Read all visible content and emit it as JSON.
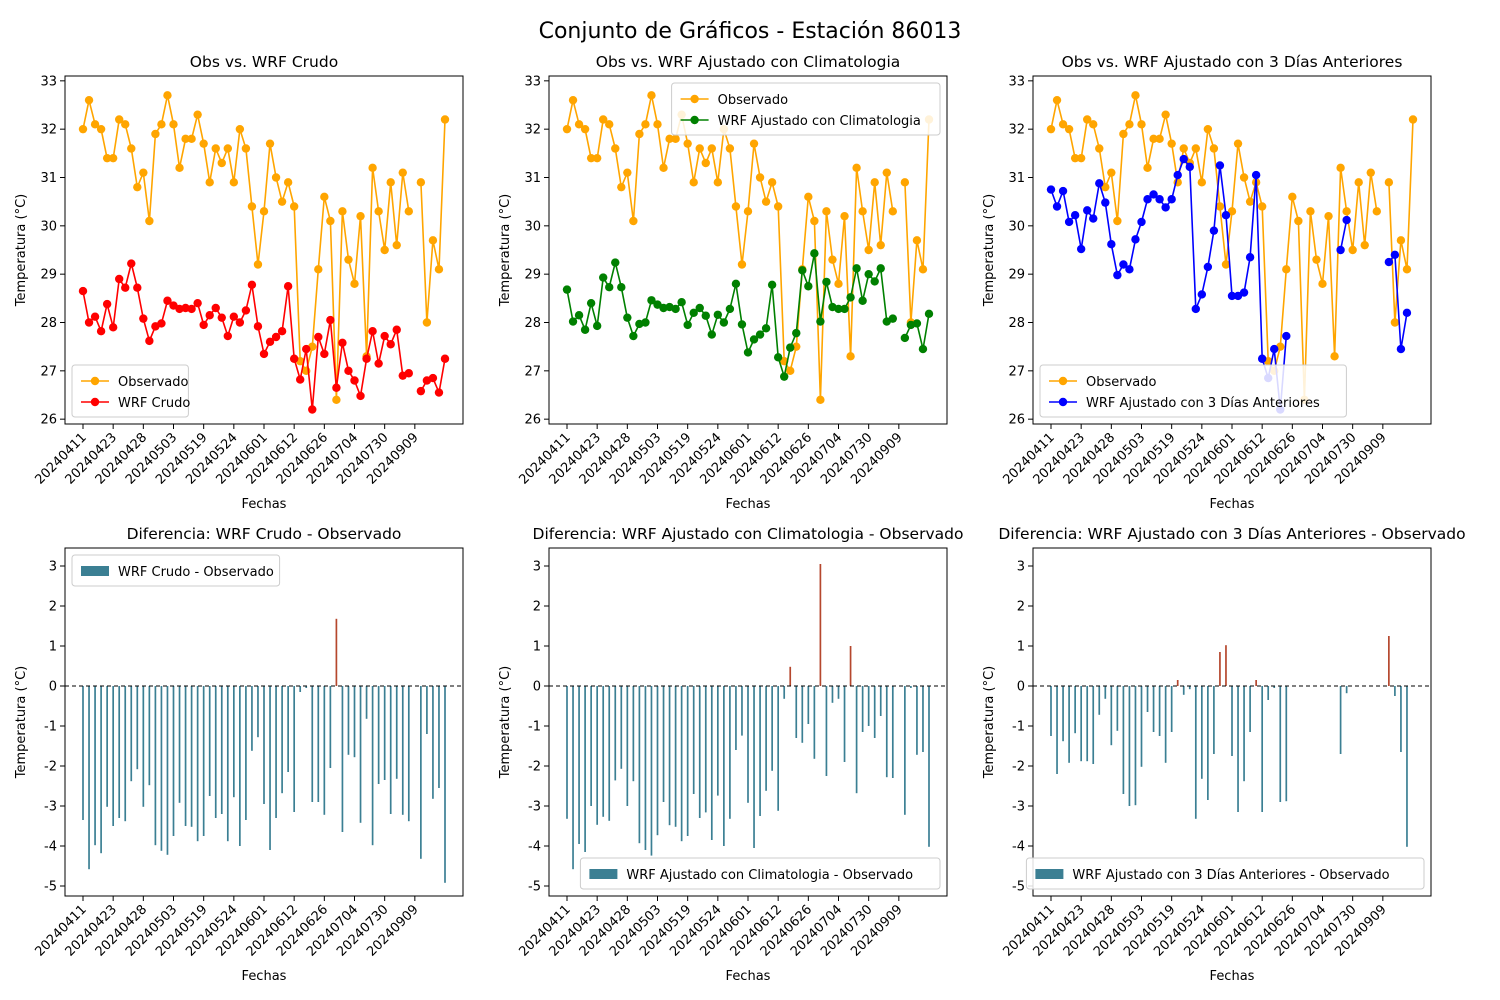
{
  "suptitle": "Conjunto de Gráficos - Estación 86013",
  "colors": {
    "observed": "#ffa500",
    "raw": "#ff0000",
    "clim": "#008000",
    "prev3": "#0000ff",
    "bar_neg": "#3b7f93",
    "bar_pos": "#b5472d"
  },
  "tick_labels": [
    "20240411",
    "20240423",
    "20240428",
    "20240503",
    "20240519",
    "20240524",
    "20240601",
    "20240612",
    "20240626",
    "20240704",
    "20240730",
    "20240909"
  ],
  "xlabel": "Fechas",
  "ylabel": "Temperatura (°C)",
  "chart_data": [
    {
      "id": "p1",
      "type": "line",
      "title": "Obs vs. WRF Crudo",
      "ylim": [
        25.9,
        33.1
      ],
      "yticks": [
        26,
        27,
        28,
        29,
        30,
        31,
        32,
        33
      ],
      "legend_position": "lower-left",
      "series": [
        {
          "name": "Observado",
          "color_key": "observed",
          "values": [
            32.0,
            32.6,
            32.1,
            32.0,
            31.4,
            31.4,
            32.2,
            32.1,
            31.6,
            30.8,
            31.1,
            30.1,
            31.9,
            32.1,
            32.7,
            32.1,
            31.2,
            31.8,
            31.8,
            32.3,
            31.7,
            30.9,
            31.6,
            31.3,
            31.6,
            30.9,
            32.0,
            31.6,
            30.4,
            29.2,
            30.3,
            31.7,
            31.0,
            30.5,
            30.9,
            30.4,
            27.2,
            27.0,
            27.5,
            29.1,
            30.6,
            30.1,
            26.4,
            30.3,
            29.3,
            28.8,
            30.2,
            27.3,
            31.2,
            30.3,
            29.5,
            30.9,
            29.6,
            31.1,
            30.3,
            null,
            30.9,
            28.0,
            29.7,
            29.1,
            32.2
          ]
        },
        {
          "name": "WRF Crudo",
          "color_key": "raw",
          "values": [
            28.65,
            28.0,
            28.12,
            27.82,
            28.38,
            27.9,
            28.9,
            28.72,
            29.22,
            28.72,
            28.08,
            27.62,
            27.92,
            27.98,
            28.45,
            28.35,
            28.28,
            28.3,
            28.28,
            28.4,
            27.95,
            28.15,
            28.3,
            28.1,
            27.72,
            28.12,
            28.0,
            28.25,
            28.78,
            27.92,
            27.35,
            27.6,
            27.7,
            27.82,
            28.75,
            27.25,
            26.82,
            27.45,
            26.2,
            27.7,
            27.35,
            28.05,
            26.65,
            27.58,
            27.0,
            26.8,
            26.48,
            27.25,
            27.82,
            27.15,
            27.72,
            27.55,
            27.85,
            26.9,
            26.95,
            null,
            26.58,
            26.8,
            26.85,
            26.55,
            27.25
          ]
        }
      ]
    },
    {
      "id": "p2",
      "type": "line",
      "title": "Obs vs. WRF Ajustado con Climatologia",
      "ylim": [
        25.9,
        33.1
      ],
      "yticks": [
        26,
        27,
        28,
        29,
        30,
        31,
        32,
        33
      ],
      "legend_position": "top-right",
      "series": [
        {
          "name": "Observado",
          "color_key": "observed",
          "values": [
            32.0,
            32.6,
            32.1,
            32.0,
            31.4,
            31.4,
            32.2,
            32.1,
            31.6,
            30.8,
            31.1,
            30.1,
            31.9,
            32.1,
            32.7,
            32.1,
            31.2,
            31.8,
            31.8,
            32.3,
            31.7,
            30.9,
            31.6,
            31.3,
            31.6,
            30.9,
            32.0,
            31.6,
            30.4,
            29.2,
            30.3,
            31.7,
            31.0,
            30.5,
            30.9,
            30.4,
            27.2,
            27.0,
            27.5,
            29.1,
            30.6,
            30.1,
            26.4,
            30.3,
            29.3,
            28.8,
            30.2,
            27.3,
            31.2,
            30.3,
            29.5,
            30.9,
            29.6,
            31.1,
            30.3,
            null,
            30.9,
            28.0,
            29.7,
            29.1,
            32.2
          ]
        },
        {
          "name": "WRF Ajustado con Climatologia",
          "color_key": "clim",
          "values": [
            28.68,
            28.02,
            28.15,
            27.85,
            28.4,
            27.93,
            28.93,
            28.73,
            29.24,
            28.73,
            28.1,
            27.72,
            27.97,
            28.0,
            28.46,
            28.37,
            28.3,
            28.32,
            28.28,
            28.42,
            27.95,
            28.2,
            28.3,
            28.14,
            27.75,
            28.16,
            28.0,
            28.28,
            28.8,
            27.96,
            27.38,
            27.65,
            27.75,
            27.88,
            28.78,
            27.28,
            26.88,
            27.48,
            27.78,
            29.08,
            28.75,
            29.43,
            28.02,
            28.84,
            28.32,
            28.28,
            28.28,
            28.52,
            29.12,
            28.45,
            29.0,
            28.85,
            29.12,
            28.02,
            28.08,
            null,
            27.68,
            27.95,
            27.98,
            27.45,
            28.18
          ]
        }
      ]
    },
    {
      "id": "p3",
      "type": "line",
      "title": "Obs vs. WRF Ajustado con 3 Días Anteriores",
      "ylim": [
        25.9,
        33.1
      ],
      "yticks": [
        26,
        27,
        28,
        29,
        30,
        31,
        32,
        33
      ],
      "legend_position": "lower-left",
      "series": [
        {
          "name": "Observado",
          "color_key": "observed",
          "values": [
            32.0,
            32.6,
            32.1,
            32.0,
            31.4,
            31.4,
            32.2,
            32.1,
            31.6,
            30.8,
            31.1,
            30.1,
            31.9,
            32.1,
            32.7,
            32.1,
            31.2,
            31.8,
            31.8,
            32.3,
            31.7,
            30.9,
            31.6,
            31.3,
            31.6,
            30.9,
            32.0,
            31.6,
            30.4,
            29.2,
            30.3,
            31.7,
            31.0,
            30.5,
            30.9,
            30.4,
            27.2,
            27.0,
            27.5,
            29.1,
            30.6,
            30.1,
            26.4,
            30.3,
            29.3,
            28.8,
            30.2,
            27.3,
            31.2,
            30.3,
            29.5,
            30.9,
            29.6,
            31.1,
            30.3,
            null,
            30.9,
            28.0,
            29.7,
            29.1,
            32.2
          ]
        },
        {
          "name": "WRF Ajustado con 3 Días Anteriores",
          "color_key": "prev3",
          "values": [
            30.75,
            30.4,
            30.72,
            30.08,
            30.22,
            29.52,
            30.32,
            30.15,
            30.88,
            30.48,
            29.62,
            28.98,
            29.2,
            29.1,
            29.72,
            30.08,
            30.55,
            30.65,
            30.55,
            30.38,
            30.55,
            31.05,
            31.38,
            31.22,
            28.28,
            28.58,
            29.15,
            29.9,
            31.25,
            30.22,
            28.55,
            28.55,
            28.62,
            29.35,
            31.05,
            27.25,
            26.85,
            27.45,
            26.2,
            27.72,
            null,
            null,
            null,
            null,
            null,
            null,
            null,
            null,
            29.5,
            30.12,
            null,
            null,
            null,
            null,
            null,
            null,
            29.25,
            29.4,
            27.45,
            28.2,
            null
          ]
        }
      ]
    },
    {
      "id": "p4",
      "type": "bar",
      "title": "Diferencia: WRF Crudo - Observado",
      "ylim": [
        -5.25,
        3.45
      ],
      "yticks": [
        -5,
        -4,
        -3,
        -2,
        -1,
        0,
        1,
        2,
        3
      ],
      "legend_position": "top-left",
      "series": [
        {
          "name": "WRF Crudo - Observado",
          "values": [
            -3.35,
            -4.58,
            -3.98,
            -4.18,
            -3.02,
            -3.5,
            -3.3,
            -3.38,
            -2.38,
            -2.08,
            -3.02,
            -2.48,
            -3.98,
            -4.12,
            -4.22,
            -3.75,
            -2.92,
            -3.5,
            -3.52,
            -3.88,
            -3.75,
            -2.75,
            -3.3,
            -3.2,
            -3.88,
            -2.78,
            -4.0,
            -3.35,
            -1.62,
            -1.28,
            -2.95,
            -4.1,
            -3.3,
            -2.68,
            -2.15,
            -3.15,
            -0.15,
            -0.05,
            -2.9,
            -2.9,
            -3.22,
            -2.05,
            1.68,
            -3.65,
            -1.72,
            -1.78,
            -3.42,
            -0.82,
            -3.98,
            -2.45,
            -2.35,
            -3.2,
            -2.32,
            -3.22,
            -3.38,
            null,
            -4.32,
            -1.2,
            -2.82,
            -2.55,
            -4.92
          ]
        }
      ]
    },
    {
      "id": "p5",
      "type": "bar",
      "title": "Diferencia: WRF Ajustado con Climatologia - Observado",
      "ylim": [
        -5.25,
        3.45
      ],
      "yticks": [
        -5,
        -4,
        -3,
        -2,
        -1,
        0,
        1,
        2,
        3
      ],
      "legend_position": "bottom-right",
      "series": [
        {
          "name": "WRF Ajustado con Climatologia - Observado",
          "values": [
            -3.32,
            -4.58,
            -3.95,
            -4.15,
            -3.0,
            -3.47,
            -3.27,
            -3.37,
            -2.36,
            -2.07,
            -3.0,
            -2.38,
            -3.93,
            -4.1,
            -4.24,
            -3.73,
            -2.9,
            -3.48,
            -3.52,
            -3.88,
            -3.75,
            -2.7,
            -3.3,
            -3.16,
            -3.85,
            -2.74,
            -4.0,
            -3.32,
            -1.6,
            -1.24,
            -2.92,
            -4.05,
            -3.25,
            -2.62,
            -2.12,
            -3.12,
            -0.32,
            0.48,
            -1.3,
            -1.42,
            -0.95,
            -1.82,
            3.05,
            -2.25,
            -0.42,
            -0.32,
            -1.9,
            1.0,
            -2.68,
            -1.15,
            -1.0,
            -1.3,
            -0.75,
            -2.28,
            -2.3,
            null,
            -3.22,
            -0.05,
            -1.72,
            -1.65,
            -4.02
          ]
        }
      ]
    },
    {
      "id": "p6",
      "type": "bar",
      "title": "Diferencia: WRF Ajustado con 3 Días Anteriores - Observado",
      "ylim": [
        -5.25,
        3.45
      ],
      "yticks": [
        -5,
        -4,
        -3,
        -2,
        -1,
        0,
        1,
        2,
        3
      ],
      "legend_position": "bottom-right",
      "series": [
        {
          "name": "WRF Ajustado con 3 Días Anteriores - Observado",
          "values": [
            -1.25,
            -2.2,
            -1.38,
            -1.92,
            -1.18,
            -1.88,
            -1.88,
            -1.95,
            -0.72,
            -0.32,
            -1.48,
            -1.12,
            -2.7,
            -3.0,
            -2.98,
            -2.02,
            -0.65,
            -1.15,
            -1.25,
            -1.92,
            -1.15,
            0.15,
            -0.22,
            -0.08,
            -3.32,
            -2.32,
            -2.85,
            -1.7,
            0.85,
            1.02,
            -1.75,
            -3.15,
            -2.38,
            -1.15,
            0.15,
            -3.15,
            -0.35,
            -0.05,
            -2.9,
            -2.88,
            null,
            null,
            null,
            null,
            null,
            null,
            null,
            null,
            -1.7,
            -0.18,
            null,
            null,
            null,
            null,
            null,
            null,
            1.25,
            -0.25,
            -1.65,
            -4.02,
            null
          ]
        }
      ]
    }
  ]
}
